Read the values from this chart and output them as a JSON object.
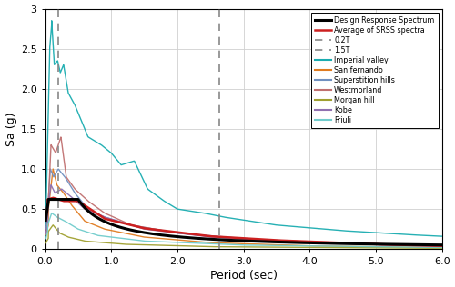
{
  "title": "",
  "xlabel": "Period (sec)",
  "ylabel": "Sa (g)",
  "xlim": [
    0.0,
    6.0
  ],
  "ylim": [
    0.0,
    3.0
  ],
  "xticks": [
    0.0,
    1.0,
    2.0,
    3.0,
    4.0,
    5.0,
    6.0
  ],
  "xtick_labels": [
    "0.0",
    "1.0",
    "2.0",
    "3.0",
    "4.0",
    "5.0",
    "6.0"
  ],
  "yticks": [
    0,
    0.5,
    1.0,
    1.5,
    2.0,
    2.5,
    3.0
  ],
  "ytick_labels": [
    "0",
    "0.5",
    "1.0",
    "1.5",
    "2.0",
    "2.5",
    "3"
  ],
  "vline_02T": 0.2,
  "vline_15T": 2.63,
  "colors": {
    "imperial_valley": "#1AACB0",
    "san_fernando": "#E07B20",
    "superstition_hills": "#7090C0",
    "westmorland": "#C07070",
    "morgan_hill": "#A0A030",
    "kobe": "#9070B0",
    "friuli": "#70CCCC",
    "design_spectrum": "#000000",
    "average_srss": "#CC2020"
  },
  "figsize": [
    5.0,
    3.16
  ],
  "dpi": 100
}
